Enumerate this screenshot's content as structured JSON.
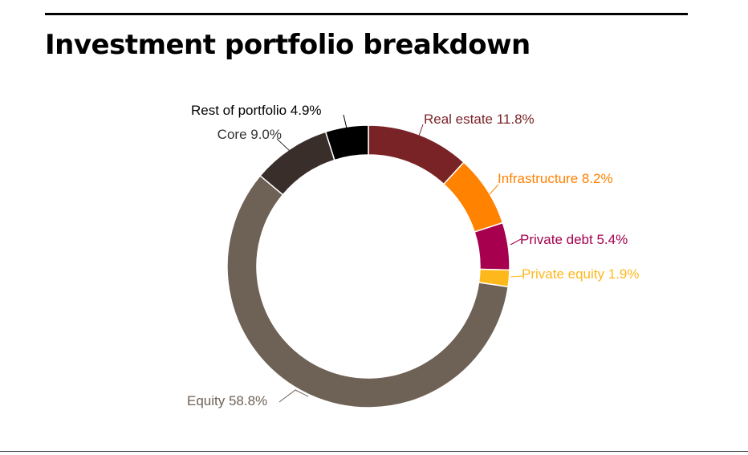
{
  "header": {
    "title": "Investment portfolio breakdown"
  },
  "chart_data": {
    "type": "pie",
    "style": "donut",
    "title": "Investment portfolio breakdown",
    "slices": [
      {
        "label": "Real estate",
        "value": 11.8,
        "display": "Real estate  11.8%",
        "color": "#7a2327"
      },
      {
        "label": "Infrastructure",
        "value": 8.2,
        "display": "Infrastructure  8.2%",
        "color": "#ff8200"
      },
      {
        "label": "Private debt",
        "value": 5.4,
        "display": "Private debt 5.4%",
        "color": "#a6004e"
      },
      {
        "label": "Private equity",
        "value": 1.9,
        "display": "Private equity  1.9%",
        "color": "#ffb81c"
      },
      {
        "label": "Equity",
        "value": 58.8,
        "display": "Equity 58.8%",
        "color": "#6e6156"
      },
      {
        "label": "Core",
        "value": 9.0,
        "display": "Core 9.0%",
        "color": "#3a2e2a"
      },
      {
        "label": "Rest of portfolio",
        "value": 4.9,
        "display": "Rest of portfolio 4.9%",
        "color": "#000000"
      }
    ]
  }
}
